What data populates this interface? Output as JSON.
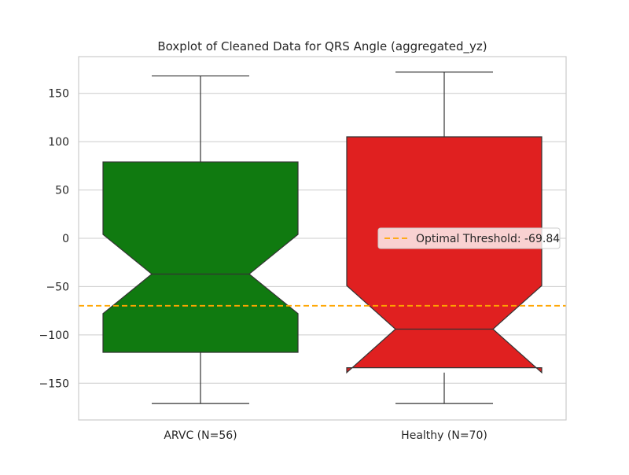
{
  "chart_data": {
    "type": "boxplot",
    "title": "Boxplot of Cleaned Data for QRS Angle (aggregated_yz)",
    "xlabel": "",
    "ylabel": "",
    "ylim": [
      -188,
      188
    ],
    "yticks": [
      -150,
      -100,
      -50,
      0,
      50,
      100,
      150
    ],
    "grid": true,
    "notched": true,
    "categories": [
      "ARVC (N=56)",
      "Healthy (N=70)"
    ],
    "boxes": [
      {
        "label": "ARVC (N=56)",
        "color": "#107a10",
        "whisker_low": -171,
        "q1": -118,
        "notch_low": -78,
        "median": -37,
        "notch_high": 4,
        "q3": 79,
        "whisker_high": 168
      },
      {
        "label": "Healthy (N=70)",
        "color": "#e02020",
        "whisker_low": -171,
        "q1": -134,
        "notch_low": -139,
        "median": -94,
        "notch_high": -49,
        "q3": 105,
        "whisker_high": 172
      }
    ],
    "threshold": {
      "value": -69.84,
      "label": "Optimal Threshold: -69.84",
      "color": "#ffa500",
      "style": "dashed"
    },
    "legend": {
      "placement": "center-right",
      "entries": [
        "Optimal Threshold: -69.84"
      ]
    }
  }
}
